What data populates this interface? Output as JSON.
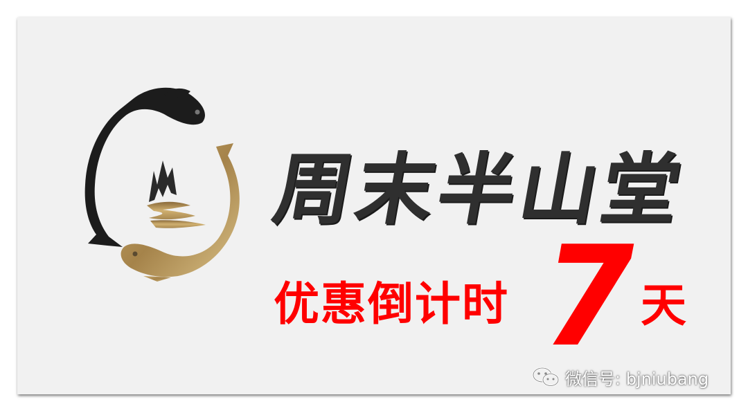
{
  "brand": {
    "title": "周末半山堂"
  },
  "promo": {
    "label": "优惠倒计时",
    "days_number": "7",
    "days_unit": "天"
  },
  "watermark": {
    "icon": "wechat-icon",
    "text": "微信号: bjniubang"
  },
  "colors": {
    "promo_red": "#ff0000",
    "fish_dark": "#1a1a1a",
    "fish_gold": "#b8965a",
    "background": "#f1f1f1"
  }
}
